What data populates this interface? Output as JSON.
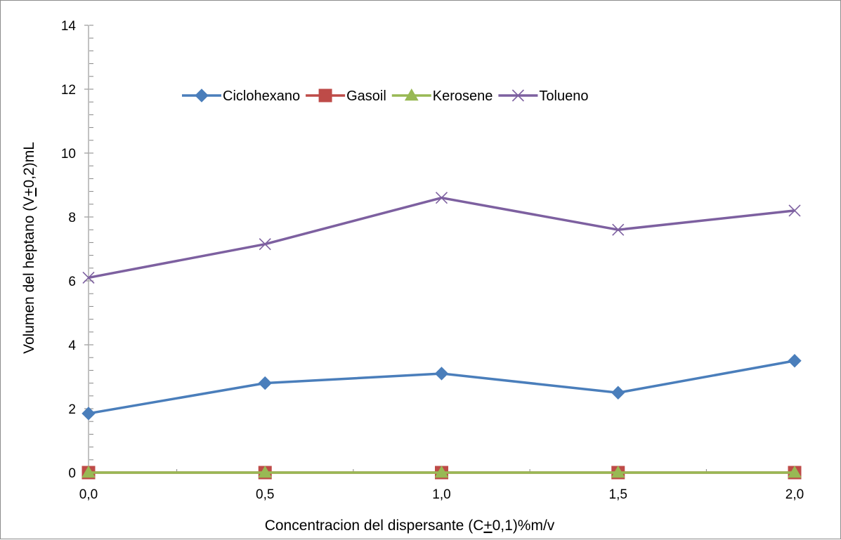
{
  "chart_data": {
    "type": "line",
    "title": "",
    "xlabel_parts": [
      "Concentracion del dispersante (C",
      "+",
      "0,1)%m/v"
    ],
    "ylabel_parts": [
      "Volumen del heptano (V",
      "+",
      "0,2)mL"
    ],
    "x": [
      0,
      0.5,
      1.0,
      1.5,
      2.0
    ],
    "x_tick_labels": [
      "0,0",
      "0,5",
      "1,0",
      "1,5",
      "2,0"
    ],
    "xlim": [
      0,
      2
    ],
    "ylim": [
      0,
      14
    ],
    "y_ticks": [
      0,
      2,
      4,
      6,
      8,
      10,
      12,
      14
    ],
    "y_tick_labels": [
      "0",
      "2",
      "4",
      "6",
      "8",
      "10",
      "12",
      "14"
    ],
    "grid": false,
    "legend_position": "top-center",
    "series": [
      {
        "name": "Ciclohexano",
        "marker": "diamond",
        "color": "#4a7ebb",
        "values": [
          1.85,
          2.8,
          3.1,
          2.5,
          3.5
        ]
      },
      {
        "name": "Gasoil",
        "marker": "square",
        "color": "#be4b48",
        "values": [
          0,
          0,
          0,
          0,
          0
        ]
      },
      {
        "name": "Kerosene",
        "marker": "triangle",
        "color": "#98b954",
        "values": [
          0,
          0,
          0,
          0,
          0
        ]
      },
      {
        "name": "Tolueno",
        "marker": "x",
        "color": "#7d60a0",
        "values": [
          6.1,
          7.15,
          8.6,
          7.6,
          8.2
        ]
      }
    ]
  }
}
